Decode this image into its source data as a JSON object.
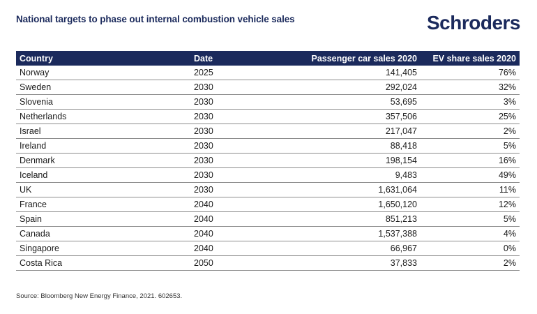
{
  "header": {
    "title": "National targets to phase out internal combustion vehicle sales",
    "logo_text": "Schroders"
  },
  "table": {
    "columns": [
      "Country",
      "Date",
      "Passenger car sales 2020",
      "EV share sales 2020"
    ],
    "rows": [
      {
        "country": "Norway",
        "date": "2025",
        "sales": "141,405",
        "ev_share": "76%"
      },
      {
        "country": "Sweden",
        "date": "2030",
        "sales": "292,024",
        "ev_share": "32%"
      },
      {
        "country": "Slovenia",
        "date": "2030",
        "sales": "53,695",
        "ev_share": "3%"
      },
      {
        "country": "Netherlands",
        "date": "2030",
        "sales": "357,506",
        "ev_share": "25%"
      },
      {
        "country": "Israel",
        "date": "2030",
        "sales": "217,047",
        "ev_share": "2%"
      },
      {
        "country": "Ireland",
        "date": "2030",
        "sales": "88,418",
        "ev_share": "5%"
      },
      {
        "country": "Denmark",
        "date": "2030",
        "sales": "198,154",
        "ev_share": "16%"
      },
      {
        "country": "Iceland",
        "date": "2030",
        "sales": "9,483",
        "ev_share": "49%"
      },
      {
        "country": "UK",
        "date": "2030",
        "sales": "1,631,064",
        "ev_share": "11%"
      },
      {
        "country": "France",
        "date": "2040",
        "sales": "1,650,120",
        "ev_share": "12%"
      },
      {
        "country": "Spain",
        "date": "2040",
        "sales": "851,213",
        "ev_share": "5%"
      },
      {
        "country": "Canada",
        "date": "2040",
        "sales": "1,537,388",
        "ev_share": "4%"
      },
      {
        "country": "Singapore",
        "date": "2040",
        "sales": "66,967",
        "ev_share": "0%"
      },
      {
        "country": "Costa Rica",
        "date": "2050",
        "sales": "37,833",
        "ev_share": "2%"
      }
    ]
  },
  "footer": {
    "source": "Source: Bloomberg New Energy Finance, 2021. 602653."
  },
  "colors": {
    "brand_navy": "#1b2a5c"
  }
}
